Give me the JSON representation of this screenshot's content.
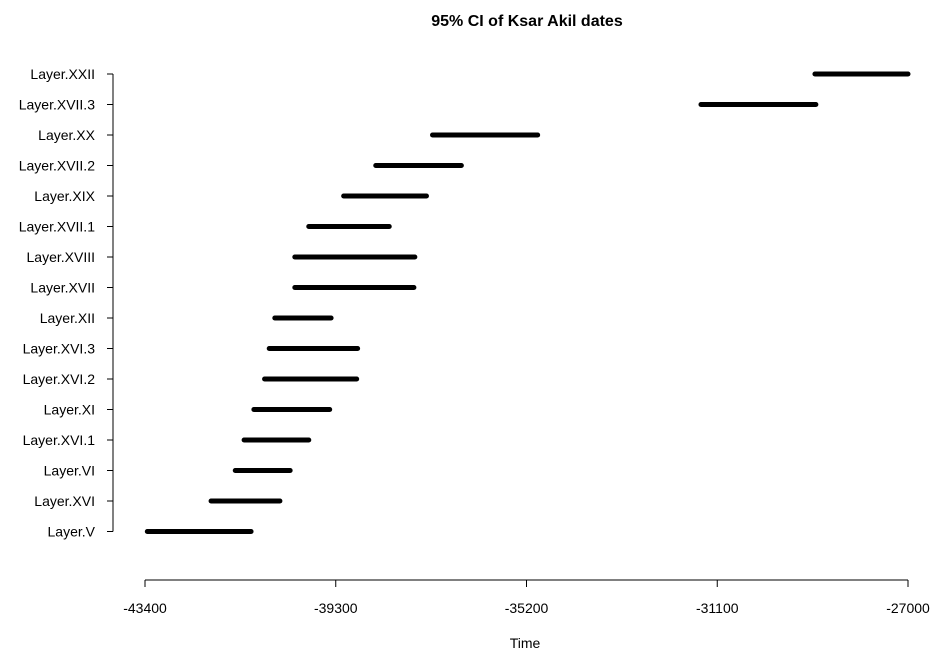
{
  "chart_data": {
    "type": "interval",
    "title": "95% CI of Ksar Akil dates",
    "xlabel": "Time",
    "ylabel": "",
    "xlim": [
      -43400,
      -27000
    ],
    "xticks": [
      -43400,
      -39300,
      -35200,
      -31100,
      -27000
    ],
    "bar_color": "#000000",
    "grid": false,
    "categories": [
      "Layer.XXII",
      "Layer.XVII.3",
      "Layer.XX",
      "Layer.XVII.2",
      "Layer.XIX",
      "Layer.XVII.1",
      "Layer.XVIII",
      "Layer.XVII",
      "Layer.XII",
      "Layer.XVI.3",
      "Layer.XVI.2",
      "Layer.XI",
      "Layer.XVI.1",
      "Layer.VI",
      "Layer.XVI",
      "Layer.V"
    ],
    "intervals": [
      [
        -29000,
        -27000
      ],
      [
        -31450,
        -28980
      ],
      [
        -37220,
        -34960
      ],
      [
        -38440,
        -36600
      ],
      [
        -39130,
        -37350
      ],
      [
        -39880,
        -38150
      ],
      [
        -40180,
        -37600
      ],
      [
        -40180,
        -37620
      ],
      [
        -40610,
        -39400
      ],
      [
        -40730,
        -38830
      ],
      [
        -40830,
        -38850
      ],
      [
        -41060,
        -39430
      ],
      [
        -41270,
        -39880
      ],
      [
        -41460,
        -40280
      ],
      [
        -41980,
        -40500
      ],
      [
        -43350,
        -41120
      ]
    ]
  }
}
